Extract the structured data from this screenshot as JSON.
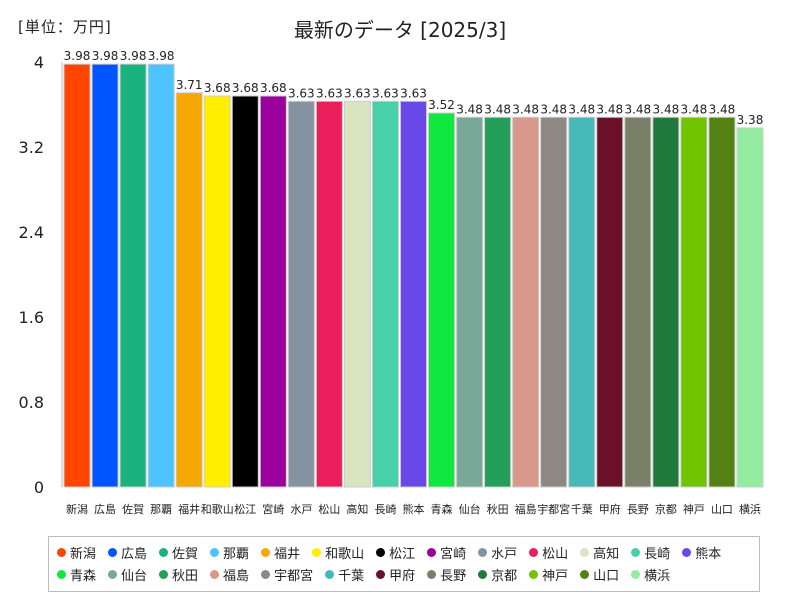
{
  "unit_label": "[単位：万円]",
  "chart_data": {
    "type": "bar",
    "title": "最新のデータ [2025/3]",
    "xlabel": "",
    "ylabel": "",
    "ylim": [
      0,
      4
    ],
    "yticks": [
      "0",
      "0.8",
      "1.6",
      "2.4",
      "3.2",
      "4"
    ],
    "grid": false,
    "legend_position": "bottom",
    "categories": [
      "新潟",
      "広島",
      "佐賀",
      "那覇",
      "福井",
      "和歌山",
      "松江",
      "宮崎",
      "水戸",
      "松山",
      "高知",
      "長崎",
      "熊本",
      "青森",
      "仙台",
      "秋田",
      "福島",
      "宇都宮",
      "千葉",
      "甲府",
      "長野",
      "京都",
      "神戸",
      "山口",
      "横浜"
    ],
    "values": [
      3.98,
      3.98,
      3.98,
      3.98,
      3.71,
      3.68,
      3.68,
      3.68,
      3.63,
      3.63,
      3.63,
      3.63,
      3.63,
      3.52,
      3.48,
      3.48,
      3.48,
      3.48,
      3.48,
      3.48,
      3.48,
      3.48,
      3.48,
      3.48,
      3.38
    ],
    "value_labels": [
      "3.98",
      "3.98",
      "3.98",
      "3.98",
      "3.71",
      "3.68",
      "3.68",
      "3.68",
      "3.63",
      "3.63",
      "3.63",
      "3.63",
      "3.63",
      "3.52",
      "3.48",
      "3.48",
      "3.48",
      "3.48",
      "3.48",
      "3.48",
      "3.48",
      "3.48",
      "3.48",
      "3.48",
      "3.38"
    ],
    "colors": [
      "#ff4500",
      "#0055ff",
      "#1ab27e",
      "#4dc3ff",
      "#f5a800",
      "#ffee00",
      "#000000",
      "#9c009c",
      "#8592a0",
      "#ea1e5a",
      "#d9e4c0",
      "#47d1a8",
      "#6a48e8",
      "#10e840",
      "#7aa898",
      "#249e58",
      "#d8998c",
      "#8e8884",
      "#47b8b8",
      "#6a1028",
      "#7a8068",
      "#207a3e",
      "#70c400",
      "#548014",
      "#94eca0"
    ]
  }
}
